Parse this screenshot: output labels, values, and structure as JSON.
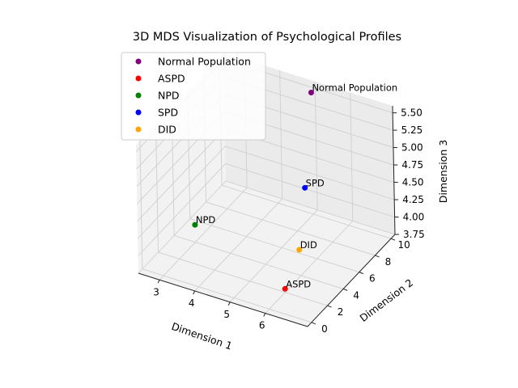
{
  "chart_data": {
    "type": "scatter",
    "projection": "3d",
    "title": "3D MDS Visualization of Psychological Profiles",
    "xlabel": "Dimension 1",
    "ylabel": "Dimension 2",
    "zlabel": "Dimension 3",
    "xlim": [
      2.4,
      7.2
    ],
    "ylim": [
      -0.5,
      10.5
    ],
    "zlim": [
      3.75,
      5.6
    ],
    "xticks": [
      "3",
      "4",
      "5",
      "6"
    ],
    "yticks": [
      "0",
      "2",
      "4",
      "6",
      "8",
      "10"
    ],
    "zticks": [
      "3.75",
      "4.00",
      "4.25",
      "4.50",
      "4.75",
      "5.00",
      "5.25",
      "5.50"
    ],
    "grid": true,
    "legend_position": "upper-left",
    "series": [
      {
        "name": "Normal Population",
        "label": "Normal Population",
        "color": "#800080",
        "x": 5.0,
        "y": 10.0,
        "z": 5.5
      },
      {
        "name": "ASPD",
        "label": "ASPD",
        "color": "#ff0000",
        "x": 6.0,
        "y": 2.0,
        "z": 3.8
      },
      {
        "name": "NPD",
        "label": "NPD",
        "color": "#008000",
        "x": 3.0,
        "y": 4.0,
        "z": 4.0
      },
      {
        "name": "SPD",
        "label": "SPD",
        "color": "#0000ff",
        "x": 5.0,
        "y": 9.0,
        "z": 4.25
      },
      {
        "name": "DID",
        "label": "DID",
        "color": "#ffa500",
        "x": 5.5,
        "y": 6.0,
        "z": 3.8
      }
    ]
  }
}
